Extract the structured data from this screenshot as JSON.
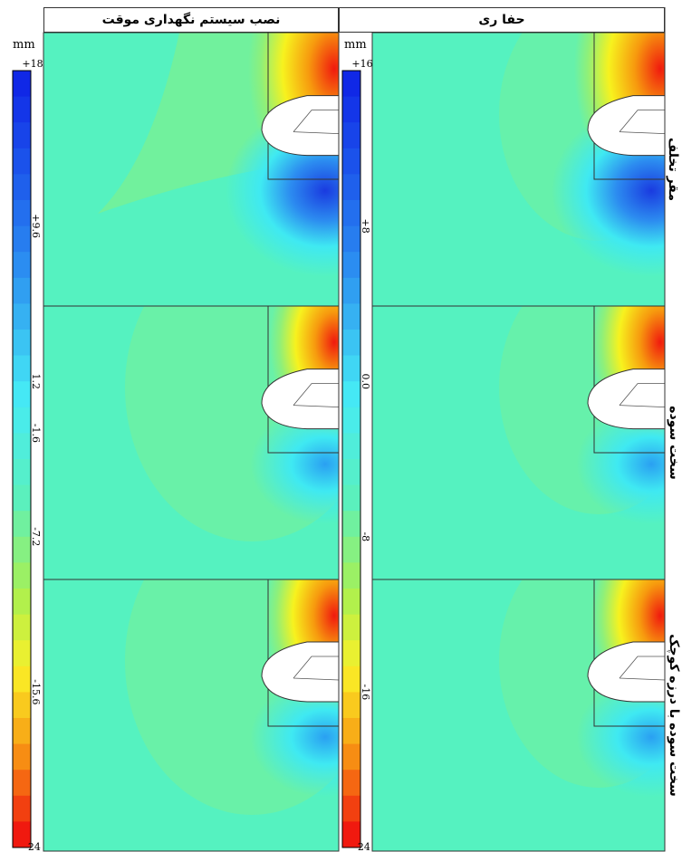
{
  "columns": [
    {
      "title": "حفا ری"
    },
    {
      "title": "نصب سیستم نگهداری موقت"
    }
  ],
  "rows": [
    {
      "label": "مقر تخلف"
    },
    {
      "label": "سخت سوده"
    },
    {
      "label": "سخت سوده با درزه کوچک"
    }
  ],
  "scales": [
    {
      "unit": "mm",
      "max_label": "+18",
      "min_label": "-24",
      "labels": [
        "+9.6",
        "1.2",
        "-1.6",
        "-7.2",
        "-15.6"
      ],
      "range": [
        -24,
        18
      ]
    },
    {
      "unit": "mm",
      "max_label": "+16",
      "min_label": "-24",
      "labels": [
        "+8",
        "0.0",
        "-8",
        "-16"
      ],
      "range": [
        -24,
        16
      ]
    }
  ],
  "colors": {
    "background_field": "#55f2c0",
    "field_light_green": "#8ef07a",
    "deep_blue": "#1a3be0",
    "cyan": "#3fe9f2",
    "yellow": "#f7f21e",
    "orange": "#f79a0e",
    "red": "#f01a0e"
  }
}
